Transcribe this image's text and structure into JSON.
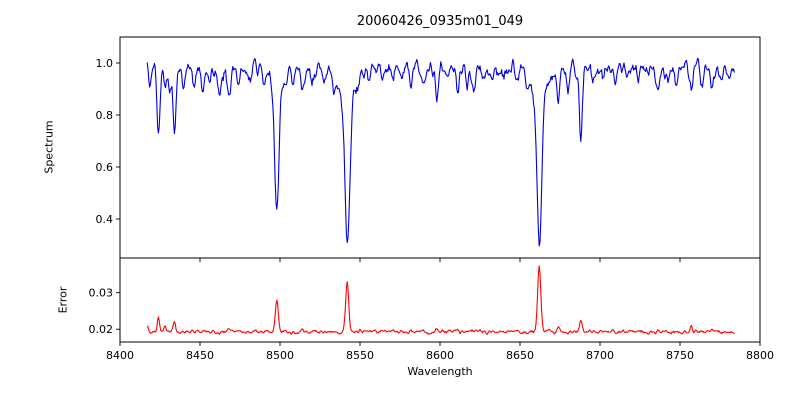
{
  "figure": {
    "background": "#ffffff",
    "frame_color": "#000000",
    "text_color": "#000000"
  },
  "chart_data": [
    {
      "type": "line",
      "name": "spectrum-panel",
      "title": "20060426_0935m01_049",
      "ylabel": "Spectrum",
      "color": "#0000dd",
      "xlim": [
        8400,
        8800
      ],
      "ylim": [
        0.25,
        1.1
      ],
      "yticks": [
        0.4,
        0.6,
        0.8,
        1.0
      ],
      "ytick_labels": [
        "0.4",
        "0.6",
        "0.8",
        "1.0"
      ],
      "x_data_range": [
        8417,
        8784
      ],
      "sample_step": 0.5,
      "continuum": 0.978,
      "noise_amplitude": 0.045,
      "noise_seed": 20060426,
      "default_line_sigma": 0.9,
      "absorption_lines": [
        {
          "center": 8498.0,
          "depth": 0.46,
          "sigma": 1.3,
          "wing_depth": 0.08,
          "wing_sigma": 3.8
        },
        {
          "center": 8542.1,
          "depth": 0.55,
          "sigma": 1.5,
          "wing_depth": 0.125,
          "wing_sigma": 4.5
        },
        {
          "center": 8662.1,
          "depth": 0.545,
          "sigma": 1.45,
          "wing_depth": 0.12,
          "wing_sigma": 4.2
        }
      ],
      "minor_lines": [
        [
          8419,
          0.06
        ],
        [
          8424,
          0.27
        ],
        [
          8428,
          0.1
        ],
        [
          8431,
          0.08
        ],
        [
          8434,
          0.25
        ],
        [
          8440,
          0.07
        ],
        [
          8446,
          0.06
        ],
        [
          8452,
          0.08
        ],
        [
          8456,
          0.05
        ],
        [
          8462,
          0.09
        ],
        [
          8468,
          0.1
        ],
        [
          8474,
          0.06
        ],
        [
          8481,
          0.05
        ],
        [
          8490,
          0.06
        ],
        [
          8508,
          0.05
        ],
        [
          8514,
          0.1
        ],
        [
          8520,
          0.06
        ],
        [
          8527,
          0.05
        ],
        [
          8534,
          0.07
        ],
        [
          8549,
          0.04
        ],
        [
          8556,
          0.05
        ],
        [
          8564,
          0.05
        ],
        [
          8571,
          0.04
        ],
        [
          8576,
          0.04
        ],
        [
          8582,
          0.07
        ],
        [
          8589,
          0.05
        ],
        [
          8598,
          0.11
        ],
        [
          8605,
          0.05
        ],
        [
          8611,
          0.09
        ],
        [
          8617,
          0.05
        ],
        [
          8621,
          0.08
        ],
        [
          8627,
          0.04
        ],
        [
          8632,
          0.05
        ],
        [
          8640,
          0.04
        ],
        [
          8648,
          0.06
        ],
        [
          8654,
          0.04
        ],
        [
          8674,
          0.13
        ],
        [
          8680,
          0.06
        ],
        [
          8688,
          0.27
        ],
        [
          8696,
          0.05
        ],
        [
          8702,
          0.04
        ],
        [
          8710,
          0.05
        ],
        [
          8717,
          0.04
        ],
        [
          8724,
          0.05
        ],
        [
          8730,
          0.04
        ],
        [
          8736,
          0.06
        ],
        [
          8742,
          0.04
        ],
        [
          8748,
          0.05
        ],
        [
          8757,
          0.09
        ],
        [
          8764,
          0.05
        ],
        [
          8770,
          0.06
        ],
        [
          8776,
          0.04
        ],
        [
          8781,
          0.05
        ]
      ]
    },
    {
      "type": "line",
      "name": "error-panel",
      "ylabel": "Error",
      "xlabel": "Wavelength",
      "color": "#ff0000",
      "xlim": [
        8400,
        8800
      ],
      "ylim": [
        0.0165,
        0.0395
      ],
      "yticks": [
        0.02,
        0.03
      ],
      "ytick_labels": [
        "0.02",
        "0.03"
      ],
      "xticks": [
        8400,
        8450,
        8500,
        8550,
        8600,
        8650,
        8700,
        8750,
        8800
      ],
      "xtick_labels": [
        "8400",
        "8450",
        "8500",
        "8550",
        "8600",
        "8650",
        "8700",
        "8750",
        "8800"
      ],
      "baseline": 0.0193,
      "noise_amplitude": 0.0008,
      "spikes": [
        [
          8417,
          0.0013,
          0.6
        ],
        [
          8424,
          0.0042,
          0.7
        ],
        [
          8428,
          0.0014,
          0.6
        ],
        [
          8434,
          0.0028,
          0.7
        ],
        [
          8452,
          0.0007,
          0.6
        ],
        [
          8468,
          0.0011,
          0.7
        ],
        [
          8498,
          0.0092,
          0.9
        ],
        [
          8514,
          0.0009,
          0.7
        ],
        [
          8542,
          0.0132,
          1.0
        ],
        [
          8582,
          0.0007,
          0.6
        ],
        [
          8598,
          0.001,
          0.7
        ],
        [
          8611,
          0.0008,
          0.7
        ],
        [
          8662,
          0.0182,
          1.0
        ],
        [
          8674,
          0.0011,
          0.7
        ],
        [
          8688,
          0.0032,
          0.8
        ],
        [
          8736,
          0.0007,
          0.6
        ],
        [
          8757,
          0.0012,
          0.7
        ],
        [
          8770,
          0.0009,
          0.6
        ]
      ]
    }
  ]
}
